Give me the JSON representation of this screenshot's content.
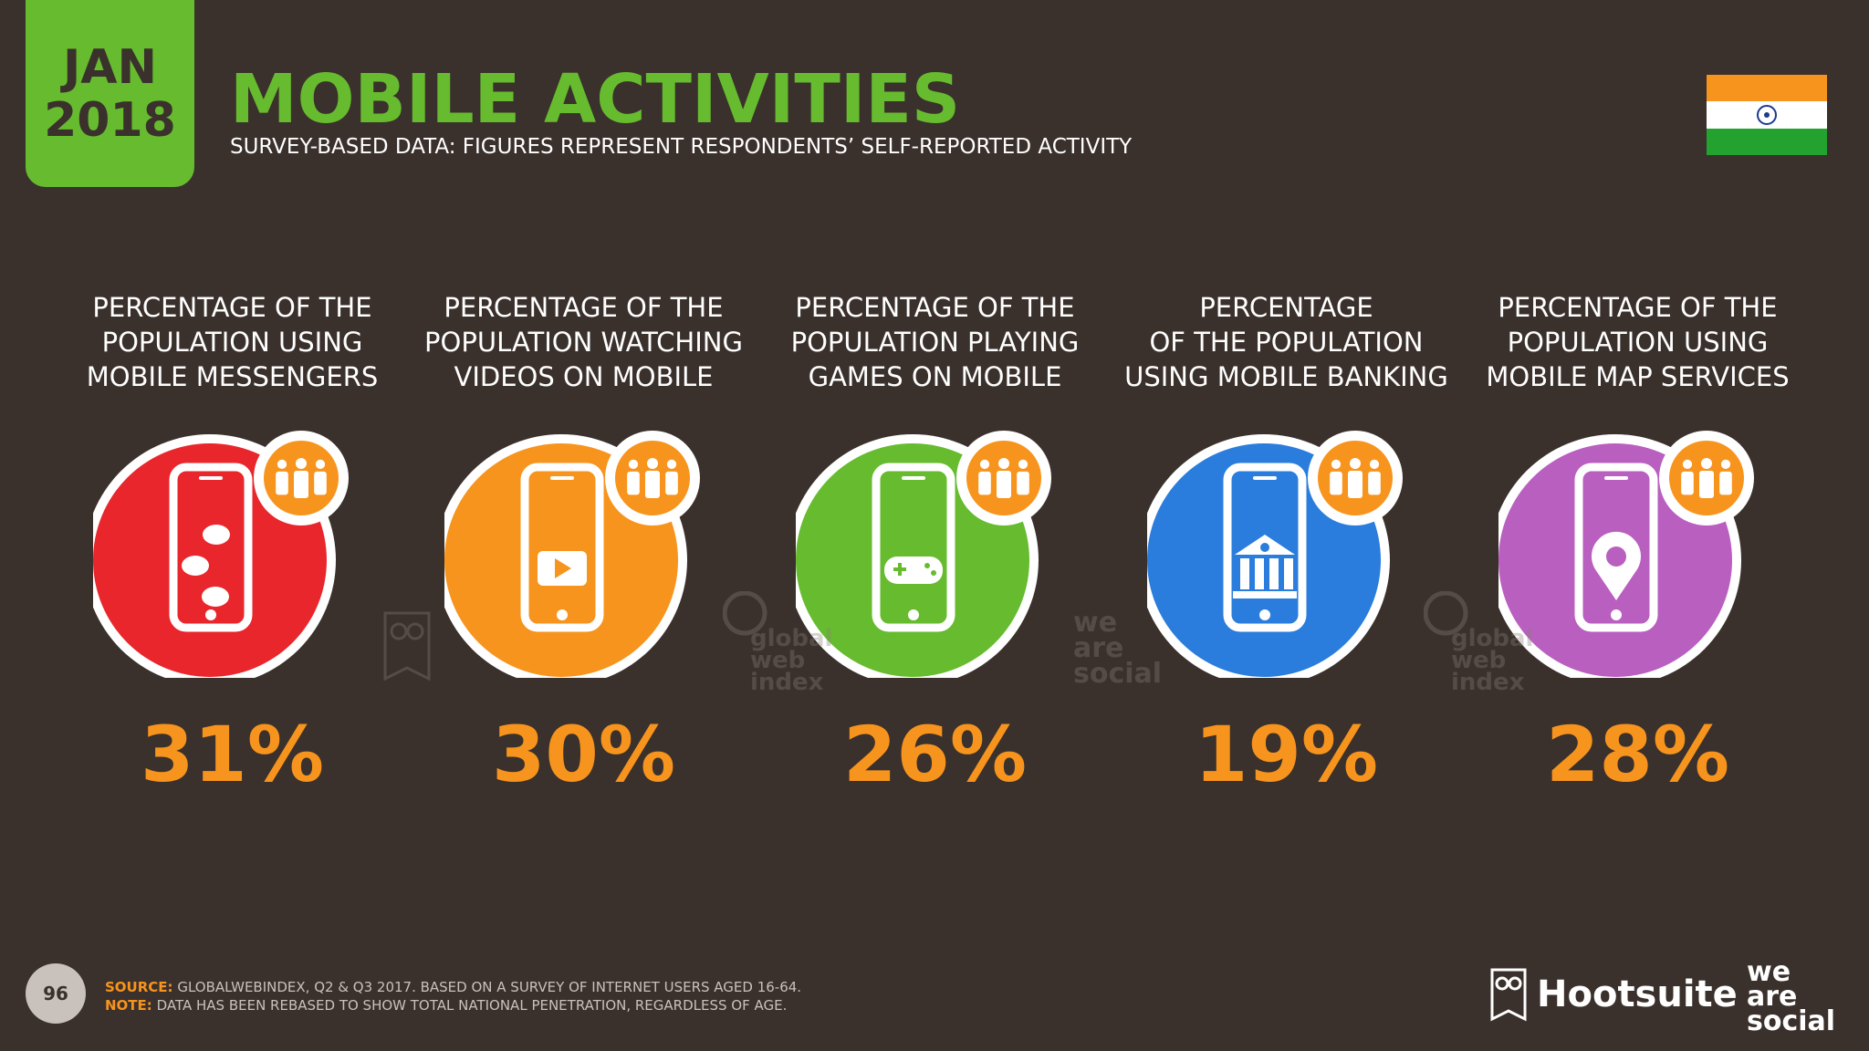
{
  "header": {
    "date_month": "JAN",
    "date_year": "2018",
    "title": "MOBILE ACTIVITIES",
    "subtitle": "SURVEY-BASED DATA: FIGURES REPRESENT RESPONDENTS’ SELF-REPORTED ACTIVITY",
    "flag_icon": "india-flag-icon"
  },
  "chart_data": {
    "type": "table",
    "categories": [
      "PERCENTAGE OF THE\nPOPULATION USING\nMOBILE MESSENGERS",
      "PERCENTAGE OF THE\nPOPULATION WATCHING\nVIDEOS ON MOBILE",
      "PERCENTAGE OF THE\nPOPULATION PLAYING\nGAMES ON MOBILE",
      "PERCENTAGE\nOF THE POPULATION\nUSING MOBILE BANKING",
      "PERCENTAGE OF THE\nPOPULATION USING\nMOBILE MAP SERVICES"
    ],
    "values": [
      31,
      30,
      26,
      19,
      28
    ],
    "value_labels": [
      "31%",
      "30%",
      "26%",
      "19%",
      "28%"
    ],
    "colors": [
      "#e8262c",
      "#f7941d",
      "#66bb2e",
      "#2a7ddc",
      "#b95fc0"
    ],
    "icons": [
      "chat-bubbles-icon",
      "play-video-icon",
      "gamepad-icon",
      "bank-icon",
      "map-pin-icon"
    ],
    "value_color": "#f7941d"
  },
  "footer": {
    "page_number": "96",
    "source_tag": "SOURCE:",
    "source_text": "GLOBALWEBINDEX, Q2 & Q3 2017. BASED ON A SURVEY OF INTERNET USERS AGED 16-64.",
    "note_tag": "NOTE:",
    "note_text": "DATA HAS BEEN REBASED TO SHOW TOTAL NATIONAL PENETRATION, REGARDLESS OF AGE.",
    "brand_hootsuite": "Hootsuite",
    "brand_wearesocial": [
      "we",
      "are",
      "social"
    ]
  },
  "watermarks": {
    "gwi": [
      "global",
      "web",
      "index"
    ],
    "was": [
      "we",
      "are",
      "social"
    ]
  }
}
